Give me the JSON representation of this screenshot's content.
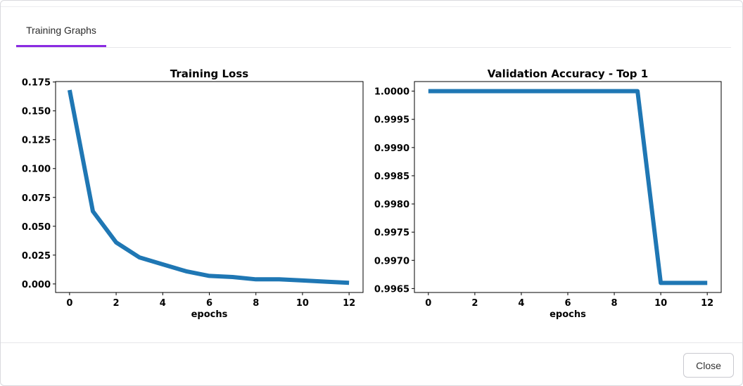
{
  "tabs": [
    {
      "label": "Training Graphs",
      "active": true
    }
  ],
  "footer": {
    "close_label": "Close"
  },
  "accent_color": "#8a2be2",
  "line_color": "#1f77b4",
  "chart_data": [
    {
      "type": "line",
      "title": "Training Loss",
      "xlabel": "epochs",
      "ylabel": "",
      "x": [
        0,
        1,
        2,
        3,
        4,
        5,
        6,
        7,
        8,
        9,
        10,
        11,
        12
      ],
      "series": [
        {
          "values": [
            0.168,
            0.063,
            0.036,
            0.023,
            0.017,
            0.011,
            0.007,
            0.006,
            0.004,
            0.004,
            0.003,
            0.002,
            0.001
          ]
        }
      ],
      "xlim": [
        -0.6,
        12.6
      ],
      "ylim": [
        -0.0074,
        0.1754
      ],
      "xticks": [
        0,
        2,
        4,
        6,
        8,
        10,
        12
      ],
      "yticks": [
        0.0,
        0.025,
        0.05,
        0.075,
        0.1,
        0.125,
        0.15,
        0.175
      ],
      "ytick_labels": [
        "0.000",
        "0.025",
        "0.050",
        "0.075",
        "0.100",
        "0.125",
        "0.150",
        "0.175"
      ],
      "grid": false
    },
    {
      "type": "line",
      "title": "Validation Accuracy - Top 1",
      "xlabel": "epochs",
      "ylabel": "",
      "x": [
        0,
        1,
        2,
        3,
        4,
        5,
        6,
        7,
        8,
        9,
        10,
        11,
        12
      ],
      "series": [
        {
          "values": [
            1.0,
            1.0,
            1.0,
            1.0,
            1.0,
            1.0,
            1.0,
            1.0,
            1.0,
            1.0,
            0.9966,
            0.9966,
            0.9966
          ]
        }
      ],
      "xlim": [
        -0.6,
        12.6
      ],
      "ylim": [
        0.99643,
        1.00017
      ],
      "xticks": [
        0,
        2,
        4,
        6,
        8,
        10,
        12
      ],
      "yticks": [
        0.9965,
        0.997,
        0.9975,
        0.998,
        0.9985,
        0.999,
        0.9995,
        1.0
      ],
      "ytick_labels": [
        "0.9965",
        "0.9970",
        "0.9975",
        "0.9980",
        "0.9985",
        "0.9990",
        "0.9995",
        "1.0000"
      ],
      "grid": false
    }
  ]
}
